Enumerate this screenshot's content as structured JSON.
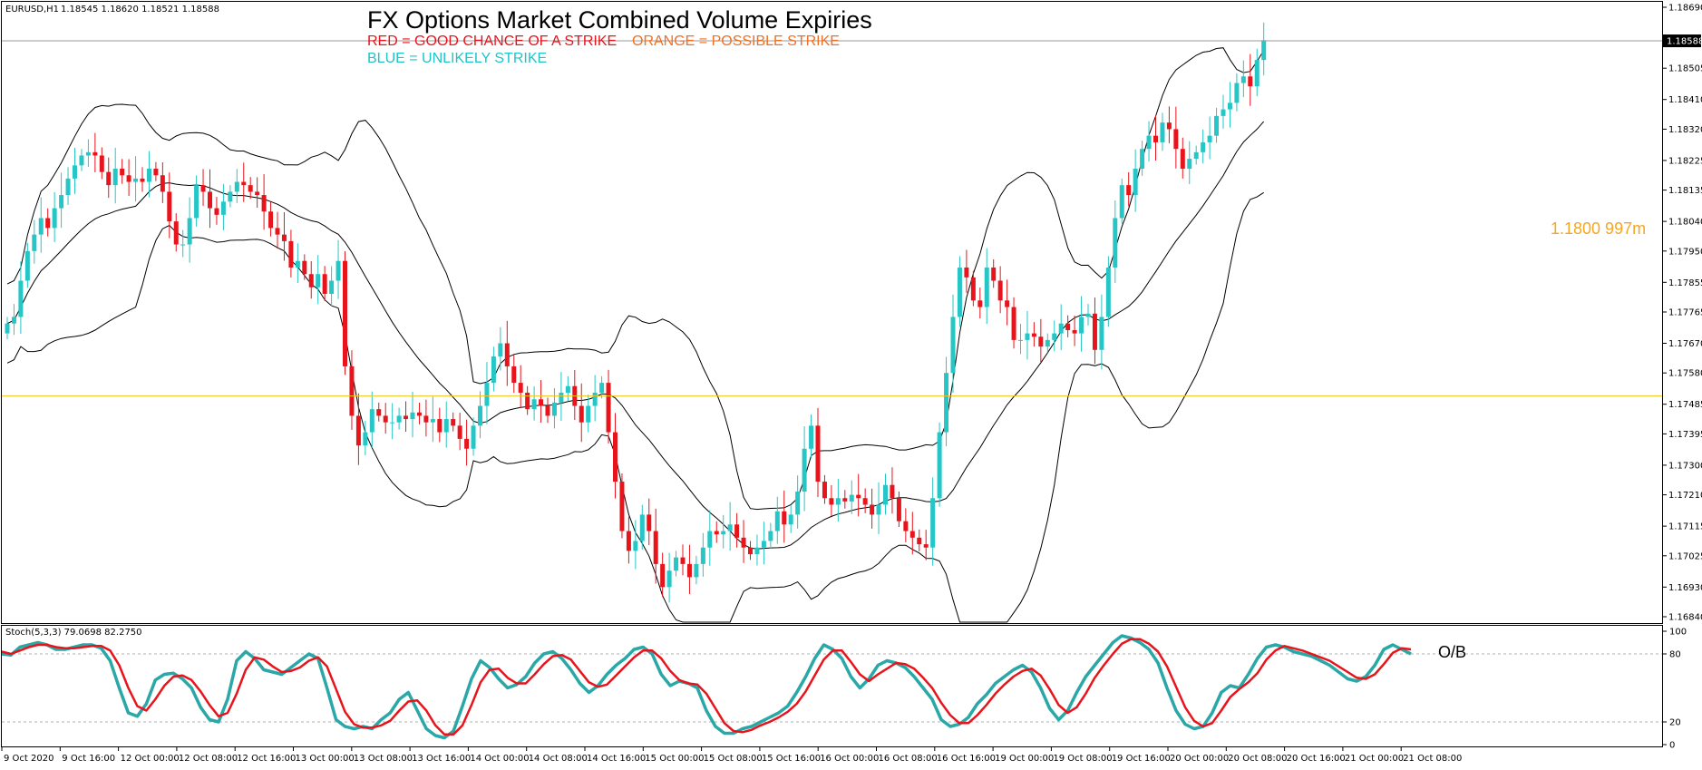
{
  "window": {
    "symbol_label": "EURUSD,H1",
    "ohlc_label": "1.18545 1.18620 1.18521 1.18588"
  },
  "title": "FX Options Market Combined Volume Expiries",
  "legend": {
    "red": "RED = GOOD CHANCE OF A STRIKE",
    "orange": "ORANGE = POSSIBLE STRIKE",
    "blue": "BLUE = UNLIKELY STRIKE"
  },
  "expiry": {
    "label": "1.1800 997m",
    "level": 1.1751,
    "color": "#f5a623"
  },
  "current_price": "1.18588",
  "stochastic": {
    "label": "Stoch(5,3,3) 79.0698 82.2750",
    "levels": [
      "100",
      "80",
      "20",
      "0"
    ],
    "ob_label": "O/B"
  },
  "colors": {
    "bull": "#26c6c6",
    "bear": "#e8141c",
    "band": "#000000",
    "stoch_main": "#2aa7a7",
    "stoch_signal": "#e8141c"
  },
  "chart_data": [
    {
      "type": "candlestick",
      "symbol": "EURUSD",
      "timeframe": "H1",
      "ylim": [
        1.1684,
        1.1869
      ],
      "y_ticks": [
        "1.18690",
        "1.18505",
        "1.18410",
        "1.18320",
        "1.18225",
        "1.18135",
        "1.18040",
        "1.17950",
        "1.17855",
        "1.17765",
        "1.17670",
        "1.17580",
        "1.17485",
        "1.17395",
        "1.17300",
        "1.17210",
        "1.17115",
        "1.17025",
        "1.16930",
        "1.16840"
      ],
      "x_ticks": [
        "9 Oct 2020",
        "9 Oct 16:00",
        "12 Oct 00:00",
        "12 Oct 08:00",
        "12 Oct 16:00",
        "13 Oct 00:00",
        "13 Oct 08:00",
        "13 Oct 16:00",
        "14 Oct 00:00",
        "14 Oct 08:00",
        "14 Oct 16:00",
        "15 Oct 00:00",
        "15 Oct 08:00",
        "15 Oct 16:00",
        "16 Oct 00:00",
        "16 Oct 08:00",
        "16 Oct 16:00",
        "19 Oct 00:00",
        "19 Oct 08:00",
        "19 Oct 16:00",
        "20 Oct 00:00",
        "20 Oct 08:00",
        "20 Oct 16:00",
        "21 Oct 00:00",
        "21 Oct 08:00"
      ],
      "horizontal_lines": [
        {
          "value": 1.1751,
          "color": "#f5c518",
          "label": "1.1800 997m"
        }
      ],
      "close": [
        1.1773,
        1.1775,
        1.1786,
        1.1795,
        1.18,
        1.1805,
        1.1802,
        1.1808,
        1.1812,
        1.1817,
        1.1821,
        1.1824,
        1.1825,
        1.1824,
        1.1819,
        1.1815,
        1.182,
        1.1818,
        1.1816,
        1.1817,
        1.1816,
        1.182,
        1.1818,
        1.1813,
        1.1804,
        1.1797,
        1.1797,
        1.1805,
        1.1815,
        1.1813,
        1.1808,
        1.1806,
        1.181,
        1.1813,
        1.1816,
        1.1815,
        1.1813,
        1.1812,
        1.1807,
        1.1802,
        1.18,
        1.1798,
        1.179,
        1.1792,
        1.1788,
        1.1784,
        1.1788,
        1.1782,
        1.1786,
        1.1792,
        1.176,
        1.1745,
        1.1736,
        1.174,
        1.1747,
        1.1745,
        1.1743,
        1.1743,
        1.1745,
        1.1744,
        1.1746,
        1.1745,
        1.1743,
        1.1744,
        1.174,
        1.1744,
        1.1742,
        1.1738,
        1.1735,
        1.1742,
        1.1748,
        1.1755,
        1.1763,
        1.1767,
        1.176,
        1.1755,
        1.1752,
        1.1747,
        1.175,
        1.1748,
        1.1745,
        1.1749,
        1.1752,
        1.1754,
        1.1748,
        1.1743,
        1.1748,
        1.1752,
        1.1755,
        1.174,
        1.1725,
        1.171,
        1.1704,
        1.1707,
        1.1715,
        1.171,
        1.17,
        1.1693,
        1.1698,
        1.1702,
        1.17,
        1.1696,
        1.17,
        1.1705,
        1.171,
        1.1709,
        1.171,
        1.1712,
        1.1708,
        1.1705,
        1.1703,
        1.1705,
        1.1707,
        1.171,
        1.1716,
        1.1712,
        1.1715,
        1.1722,
        1.1735,
        1.1742,
        1.1725,
        1.172,
        1.1718,
        1.172,
        1.1719,
        1.1721,
        1.172,
        1.1718,
        1.1715,
        1.1718,
        1.1724,
        1.172,
        1.1713,
        1.171,
        1.1708,
        1.1706,
        1.1705,
        1.172,
        1.174,
        1.1758,
        1.1775,
        1.179,
        1.1787,
        1.178,
        1.1778,
        1.179,
        1.1786,
        1.178,
        1.1778,
        1.1768,
        1.1768,
        1.177,
        1.1769,
        1.1766,
        1.1768,
        1.177,
        1.1773,
        1.1771,
        1.177,
        1.1775,
        1.1776,
        1.1765,
        1.1775,
        1.179,
        1.1805,
        1.1815,
        1.1812,
        1.182,
        1.1826,
        1.183,
        1.1828,
        1.1834,
        1.1832,
        1.1826,
        1.182,
        1.1823,
        1.1825,
        1.1828,
        1.183,
        1.1836,
        1.1838,
        1.184,
        1.1846,
        1.1848,
        1.1845,
        1.1853,
        1.1859
      ]
    },
    {
      "type": "line",
      "name": "Stoch(5,3,3)",
      "ylim": [
        0,
        100
      ],
      "levels": [
        80,
        20
      ],
      "series": [
        {
          "name": "main",
          "values": [
            80,
            79,
            86,
            88,
            90,
            88,
            84,
            84,
            86,
            88,
            88,
            85,
            74,
            50,
            28,
            25,
            36,
            57,
            62,
            63,
            58,
            50,
            33,
            22,
            20,
            40,
            74,
            82,
            76,
            66,
            64,
            62,
            68,
            74,
            80,
            76,
            50,
            22,
            16,
            14,
            16,
            14,
            22,
            28,
            40,
            46,
            30,
            14,
            8,
            6,
            12,
            34,
            58,
            74,
            68,
            58,
            50,
            53,
            60,
            72,
            80,
            82,
            76,
            66,
            54,
            46,
            52,
            62,
            70,
            76,
            84,
            86,
            80,
            62,
            52,
            56,
            54,
            50,
            30,
            16,
            10,
            10,
            14,
            16,
            20,
            24,
            28,
            34,
            46,
            60,
            76,
            88,
            84,
            76,
            60,
            50,
            58,
            70,
            74,
            72,
            68,
            60,
            50,
            40,
            22,
            16,
            18,
            24,
            36,
            44,
            54,
            60,
            66,
            70,
            64,
            50,
            32,
            22,
            30,
            46,
            60,
            70,
            80,
            90,
            96,
            94,
            90,
            84,
            72,
            50,
            30,
            18,
            14,
            16,
            28,
            46,
            52,
            50,
            62,
            76,
            86,
            88,
            86,
            82,
            80,
            78,
            74,
            70,
            64,
            58,
            56,
            60,
            70,
            84,
            88,
            84,
            80
          ]
        },
        {
          "name": "signal",
          "values": [
            82,
            80,
            83,
            86,
            88,
            88,
            86,
            85,
            85,
            86,
            87,
            87,
            83,
            70,
            50,
            34,
            30,
            40,
            52,
            60,
            61,
            57,
            47,
            35,
            25,
            28,
            45,
            66,
            77,
            75,
            69,
            64,
            65,
            68,
            74,
            77,
            69,
            49,
            29,
            18,
            15,
            15,
            17,
            21,
            30,
            38,
            39,
            30,
            17,
            9,
            9,
            17,
            35,
            55,
            66,
            67,
            59,
            54,
            54,
            62,
            71,
            78,
            79,
            75,
            65,
            55,
            51,
            53,
            61,
            69,
            77,
            83,
            83,
            76,
            65,
            57,
            54,
            53,
            45,
            32,
            19,
            12,
            11,
            13,
            17,
            20,
            24,
            29,
            36,
            47,
            61,
            75,
            83,
            83,
            73,
            62,
            56,
            62,
            67,
            72,
            71,
            67,
            59,
            50,
            37,
            26,
            19,
            19,
            26,
            35,
            45,
            53,
            60,
            65,
            67,
            61,
            49,
            35,
            28,
            33,
            45,
            59,
            70,
            80,
            89,
            93,
            93,
            89,
            82,
            69,
            51,
            33,
            21,
            16,
            19,
            30,
            42,
            49,
            55,
            63,
            75,
            83,
            87,
            85,
            83,
            80,
            77,
            74,
            69,
            64,
            59,
            58,
            62,
            71,
            81,
            85,
            84
          ]
        }
      ]
    }
  ]
}
